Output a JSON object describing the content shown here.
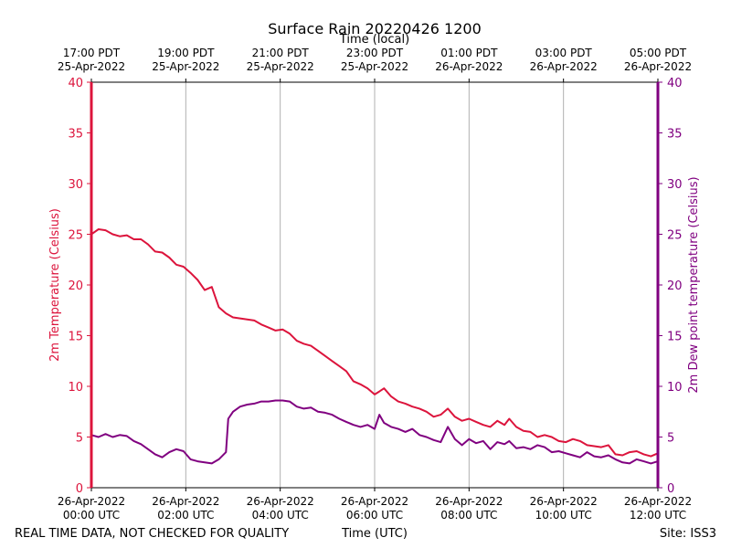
{
  "colors": {
    "temperature": "#dc143c",
    "dewpoint": "#800080",
    "grid": "#b0b0b0",
    "axis": "#000000"
  },
  "chart_data": {
    "type": "line",
    "title": "Surface Rain 20220426 1200",
    "top_axis_label": "Time (local)",
    "xlabel": "Time (UTC)",
    "ylabel_left": "2m Temperature (Celsius)",
    "ylabel_right": "2m Dew point temperature (Celsius)",
    "footer_left": "REAL TIME DATA, NOT CHECKED FOR QUALITY",
    "footer_right": "Site: ISS3",
    "xlim": [
      0,
      12
    ],
    "ylim": [
      0,
      40
    ],
    "yticks": [
      "0",
      "5",
      "10",
      "15",
      "20",
      "25",
      "30",
      "35",
      "40"
    ],
    "grid_vertical": true,
    "bottom_ticks": [
      {
        "x": 0,
        "line1": "26-Apr-2022",
        "line2": "00:00 UTC"
      },
      {
        "x": 2,
        "line1": "26-Apr-2022",
        "line2": "02:00 UTC"
      },
      {
        "x": 4,
        "line1": "26-Apr-2022",
        "line2": "04:00 UTC"
      },
      {
        "x": 6,
        "line1": "26-Apr-2022",
        "line2": "06:00 UTC"
      },
      {
        "x": 8,
        "line1": "26-Apr-2022",
        "line2": "08:00 UTC"
      },
      {
        "x": 10,
        "line1": "26-Apr-2022",
        "line2": "10:00 UTC"
      },
      {
        "x": 12,
        "line1": "26-Apr-2022",
        "line2": "12:00 UTC"
      }
    ],
    "top_ticks": [
      {
        "x": 0,
        "line1": "17:00 PDT",
        "line2": "25-Apr-2022"
      },
      {
        "x": 2,
        "line1": "19:00 PDT",
        "line2": "25-Apr-2022"
      },
      {
        "x": 4,
        "line1": "21:00 PDT",
        "line2": "25-Apr-2022"
      },
      {
        "x": 6,
        "line1": "23:00 PDT",
        "line2": "25-Apr-2022"
      },
      {
        "x": 8,
        "line1": "01:00 PDT",
        "line2": "26-Apr-2022"
      },
      {
        "x": 10,
        "line1": "03:00 PDT",
        "line2": "26-Apr-2022"
      },
      {
        "x": 12,
        "line1": "05:00 PDT",
        "line2": "26-Apr-2022"
      }
    ],
    "series": [
      {
        "name": "2m Temperature",
        "axis": "left",
        "x": [
          0,
          0.15,
          0.3,
          0.45,
          0.6,
          0.75,
          0.9,
          1.05,
          1.2,
          1.35,
          1.5,
          1.65,
          1.8,
          1.95,
          2.1,
          2.25,
          2.4,
          2.55,
          2.7,
          2.85,
          3.0,
          3.15,
          3.3,
          3.45,
          3.6,
          3.75,
          3.9,
          4.05,
          4.2,
          4.35,
          4.5,
          4.65,
          4.8,
          4.95,
          5.1,
          5.25,
          5.4,
          5.55,
          5.7,
          5.85,
          6.0,
          6.1,
          6.2,
          6.35,
          6.5,
          6.65,
          6.8,
          6.95,
          7.1,
          7.25,
          7.4,
          7.55,
          7.7,
          7.85,
          8.0,
          8.15,
          8.3,
          8.45,
          8.6,
          8.75,
          8.85,
          9.0,
          9.15,
          9.3,
          9.45,
          9.6,
          9.75,
          9.9,
          10.05,
          10.2,
          10.35,
          10.5,
          10.65,
          10.8,
          10.95,
          11.1,
          11.25,
          11.4,
          11.55,
          11.7,
          11.85,
          12.0
        ],
        "values": [
          25.0,
          25.5,
          25.4,
          25.0,
          24.8,
          24.9,
          24.5,
          24.5,
          24.0,
          23.3,
          23.2,
          22.7,
          22.0,
          21.8,
          21.2,
          20.5,
          19.5,
          19.8,
          17.8,
          17.2,
          16.8,
          16.7,
          16.6,
          16.5,
          16.1,
          15.8,
          15.5,
          15.6,
          15.2,
          14.5,
          14.2,
          14.0,
          13.5,
          13.0,
          12.5,
          12.0,
          11.5,
          10.5,
          10.2,
          9.8,
          9.2,
          9.5,
          9.8,
          9.0,
          8.5,
          8.3,
          8.0,
          7.8,
          7.5,
          7.0,
          7.2,
          7.8,
          7.0,
          6.6,
          6.8,
          6.5,
          6.2,
          6.0,
          6.6,
          6.2,
          6.8,
          6.0,
          5.6,
          5.5,
          5.0,
          5.2,
          5.0,
          4.6,
          4.5,
          4.8,
          4.6,
          4.2,
          4.1,
          4.0,
          4.2,
          3.3,
          3.2,
          3.5,
          3.6,
          3.3,
          3.1,
          3.4
        ]
      },
      {
        "name": "2m Dew point temperature",
        "axis": "right",
        "x": [
          0,
          0.15,
          0.3,
          0.45,
          0.6,
          0.75,
          0.9,
          1.05,
          1.2,
          1.35,
          1.5,
          1.65,
          1.8,
          1.95,
          2.1,
          2.25,
          2.4,
          2.55,
          2.7,
          2.85,
          2.9,
          3.0,
          3.15,
          3.3,
          3.45,
          3.6,
          3.75,
          3.9,
          4.05,
          4.2,
          4.35,
          4.5,
          4.65,
          4.8,
          4.95,
          5.1,
          5.25,
          5.4,
          5.55,
          5.7,
          5.85,
          6.0,
          6.1,
          6.2,
          6.35,
          6.5,
          6.65,
          6.8,
          6.95,
          7.1,
          7.25,
          7.4,
          7.55,
          7.7,
          7.85,
          8.0,
          8.15,
          8.3,
          8.45,
          8.6,
          8.75,
          8.85,
          9.0,
          9.15,
          9.3,
          9.45,
          9.6,
          9.75,
          9.9,
          10.05,
          10.2,
          10.35,
          10.5,
          10.65,
          10.8,
          10.95,
          11.1,
          11.25,
          11.4,
          11.55,
          11.7,
          11.85,
          12.0
        ],
        "values": [
          5.2,
          5.0,
          5.3,
          5.0,
          5.2,
          5.1,
          4.6,
          4.3,
          3.8,
          3.3,
          3.0,
          3.5,
          3.8,
          3.6,
          2.8,
          2.6,
          2.5,
          2.4,
          2.8,
          3.5,
          6.8,
          7.5,
          8.0,
          8.2,
          8.3,
          8.5,
          8.5,
          8.6,
          8.6,
          8.5,
          8.0,
          7.8,
          7.9,
          7.5,
          7.4,
          7.2,
          6.8,
          6.5,
          6.2,
          6.0,
          6.2,
          5.8,
          7.2,
          6.4,
          6.0,
          5.8,
          5.5,
          5.8,
          5.2,
          5.0,
          4.7,
          4.5,
          6.0,
          4.8,
          4.2,
          4.8,
          4.4,
          4.6,
          3.8,
          4.5,
          4.3,
          4.6,
          3.9,
          4.0,
          3.8,
          4.2,
          4.0,
          3.5,
          3.6,
          3.4,
          3.2,
          3.0,
          3.5,
          3.1,
          3.0,
          3.2,
          2.8,
          2.5,
          2.4,
          2.8,
          2.6,
          2.4,
          2.6
        ]
      }
    ]
  }
}
